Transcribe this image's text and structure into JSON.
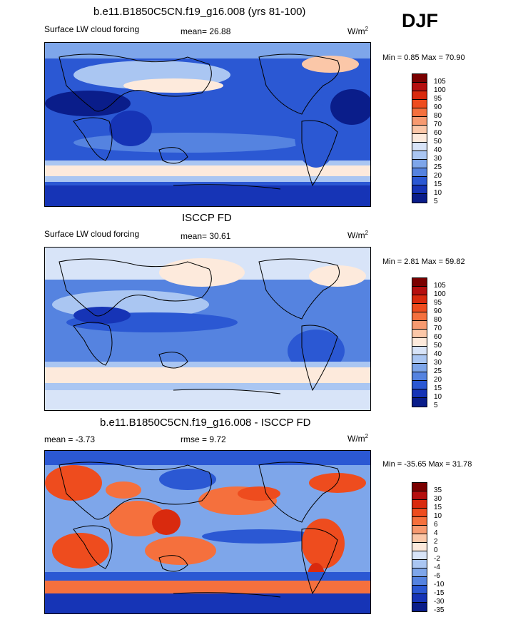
{
  "season": "DJF",
  "chart_data": [
    {
      "type": "heatmap",
      "title": "b.e11.B1850C5CN.f19_g16.008 (yrs 81-100)",
      "left_label": "Surface LW cloud forcing",
      "center_label": "mean=  26.88",
      "units": "W/m",
      "units_sup": "2",
      "min_max": "Min =   0.85 Max =  70.90",
      "mean": 26.88,
      "min": 0.85,
      "max": 70.9,
      "colorbar_levels": [
        "105",
        "100",
        "95",
        "90",
        "80",
        "70",
        "60",
        "50",
        "40",
        "30",
        "25",
        "20",
        "15",
        "10",
        "5"
      ]
    },
    {
      "type": "heatmap",
      "title": "ISCCP FD",
      "left_label": "Surface LW cloud forcing",
      "center_label": "mean=  30.61",
      "units": "W/m",
      "units_sup": "2",
      "min_max": "Min =   2.81 Max =  59.82",
      "mean": 30.61,
      "min": 2.81,
      "max": 59.82,
      "colorbar_levels": [
        "105",
        "100",
        "95",
        "90",
        "80",
        "70",
        "60",
        "50",
        "40",
        "30",
        "25",
        "20",
        "15",
        "10",
        "5"
      ]
    },
    {
      "type": "heatmap",
      "title": "b.e11.B1850C5CN.f19_g16.008 - ISCCP FD",
      "left_label": "mean =  -3.73",
      "center_label": "rmse =    9.72",
      "units": "W/m",
      "units_sup": "2",
      "min_max": "Min = -35.65 Max =  31.78",
      "mean": -3.73,
      "rmse": 9.72,
      "min": -35.65,
      "max": 31.78,
      "colorbar_levels": [
        "35",
        "30",
        "15",
        "10",
        "6",
        "4",
        "2",
        "0",
        "-2",
        "-4",
        "-6",
        "-10",
        "-15",
        "-30",
        "-35"
      ]
    }
  ],
  "colorbar_colors": [
    "#7a0000",
    "#b50f0f",
    "#d92a0e",
    "#ee4c1e",
    "#f5703d",
    "#f79a70",
    "#fbc7a8",
    "#fdeadc",
    "#d8e4f8",
    "#aac6f2",
    "#7ea6ea",
    "#5583e0",
    "#2b58d3",
    "#1634b6",
    "#0a1d8a"
  ]
}
